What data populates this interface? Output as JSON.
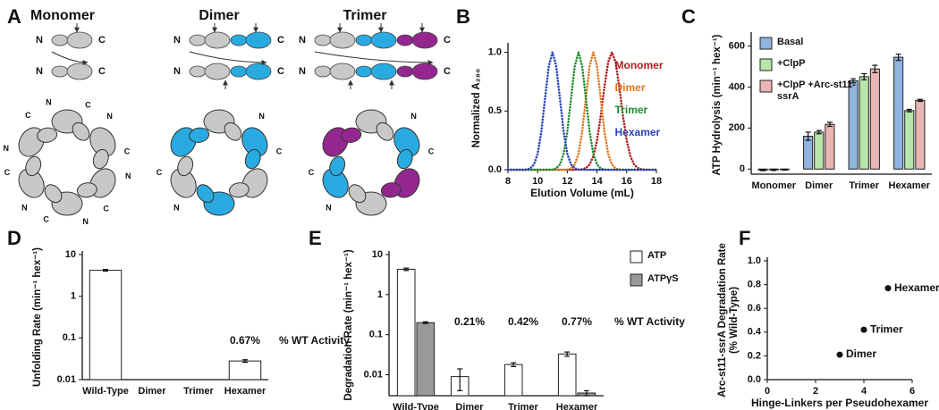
{
  "diagram": {
    "label": "A",
    "titles": [
      "Monomer",
      "Dimer",
      "Trimer"
    ],
    "terminus_labels": [
      "N",
      "C"
    ]
  },
  "chart_data": [
    {
      "type": "line",
      "label": "B",
      "xlabel": "Elution Volume (mL)",
      "ylabel": "Normalized A₂₈₀",
      "legend": "inside",
      "x": [
        8,
        8.25,
        8.5,
        8.75,
        9,
        9.25,
        9.5,
        9.75,
        10,
        10.25,
        10.5,
        10.75,
        11,
        11.25,
        11.5,
        11.75,
        12,
        12.25,
        12.5,
        12.75,
        13,
        13.25,
        13.5,
        13.75,
        14,
        14.25,
        14.5,
        14.75,
        15,
        15.25,
        15.5,
        15.75,
        16,
        16.25,
        16.5,
        16.75,
        17,
        17.25,
        17.5,
        17.75,
        18
      ],
      "xlim": [
        8,
        18
      ],
      "xticks": [
        8,
        10,
        12,
        14,
        16,
        18
      ],
      "ylim": [
        0,
        1.05
      ],
      "yticks": [
        {
          "value": 0,
          "label": "0.0"
        },
        0.5,
        {
          "value": 1,
          "label": "1.0"
        }
      ],
      "series": [
        {
          "name": "Monomer",
          "color": "#b01c1c",
          "values": [
            0,
            0,
            0,
            0,
            0,
            0,
            0,
            0,
            0,
            0,
            0,
            0,
            0,
            0,
            0,
            0,
            0,
            0,
            0,
            0.001,
            0.004,
            0.014,
            0.044,
            0.114,
            0.249,
            0.458,
            0.707,
            0.917,
            1,
            0.917,
            0.707,
            0.458,
            0.249,
            0.114,
            0.044,
            0.014,
            0.004,
            0.001,
            0,
            0,
            0
          ]
        },
        {
          "name": "Dimer",
          "color": "#e0761e",
          "values": [
            0,
            0,
            0,
            0,
            0,
            0,
            0,
            0,
            0,
            0,
            0,
            0,
            0,
            0,
            0,
            0,
            0.002,
            0.011,
            0.044,
            0.135,
            0.325,
            0.607,
            0.882,
            1,
            0.882,
            0.607,
            0.325,
            0.135,
            0.044,
            0.011,
            0.002,
            0,
            0,
            0,
            0,
            0,
            0,
            0,
            0,
            0,
            0
          ]
        },
        {
          "name": "Trimer",
          "color": "#1e8c2e",
          "values": [
            0,
            0,
            0,
            0,
            0,
            0,
            0,
            0,
            0,
            0,
            0,
            0,
            0.002,
            0.011,
            0.044,
            0.135,
            0.325,
            0.607,
            0.882,
            1,
            0.882,
            0.607,
            0.325,
            0.135,
            0.044,
            0.011,
            0.002,
            0,
            0,
            0,
            0,
            0,
            0,
            0,
            0,
            0,
            0,
            0,
            0,
            0,
            0
          ]
        },
        {
          "name": "Hexamer",
          "color": "#2a43b8",
          "values": [
            0,
            0,
            0,
            0,
            0,
            0.002,
            0.011,
            0.044,
            0.135,
            0.325,
            0.607,
            0.882,
            1,
            0.882,
            0.607,
            0.325,
            0.135,
            0.044,
            0.011,
            0.002,
            0,
            0,
            0,
            0,
            0,
            0,
            0,
            0,
            0,
            0,
            0,
            0,
            0,
            0,
            0,
            0,
            0,
            0,
            0,
            0,
            0
          ]
        }
      ]
    },
    {
      "type": "bar",
      "label": "C",
      "ylabel": "ATP Hydrolysis (min⁻¹ hex⁻¹)",
      "legend": "upper left",
      "categories": [
        "Monomer",
        "Dimer",
        "Trimer",
        "Hexamer"
      ],
      "ylim": [
        -25,
        650
      ],
      "yticks": [
        0,
        200,
        400,
        600
      ],
      "series": [
        {
          "name": "Basal",
          "color": "#8fb4e0",
          "values": [
            -5,
            160,
            430,
            545
          ],
          "errors": [
            3,
            20,
            10,
            15
          ]
        },
        {
          "name": "+ClpP",
          "color": "#b8e6a8",
          "values": [
            -4,
            180,
            450,
            285
          ],
          "errors": [
            3,
            8,
            15,
            6
          ]
        },
        {
          "name": "+ClpP +Arc-st11-ssrA",
          "color": "#e8b6b4",
          "values": [
            -3,
            218,
            488,
            335
          ],
          "errors": [
            2,
            10,
            18,
            5
          ]
        }
      ]
    },
    {
      "type": "bar",
      "label": "D",
      "ylabel": "Unfolding Rate (min⁻¹ hex⁻¹)",
      "log_y": true,
      "categories": [
        "Wild-Type",
        "Dimer",
        "Trimer",
        "Hexamer"
      ],
      "ylim": [
        0.01,
        10
      ],
      "yticks": [
        0.01,
        0.1,
        1,
        10
      ],
      "values": [
        4.2,
        null,
        null,
        0.028
      ],
      "errors": [
        0.2,
        null,
        null,
        0.002
      ],
      "color": "#ffffff",
      "wt_activity": {
        "label": "% WT Activity",
        "values": [
          null,
          null,
          null,
          0.67
        ],
        "value_labels": [
          null,
          null,
          null,
          "0.67%"
        ]
      }
    },
    {
      "type": "bar",
      "label": "E",
      "ylabel": "Degradation Rate (min⁻¹ hex⁻¹)",
      "log_y": true,
      "legend": "right",
      "categories": [
        "Wild-Type",
        "Dimer",
        "Trimer",
        "Hexamer"
      ],
      "ylim": [
        0.003,
        10
      ],
      "yticks": [
        0.01,
        0.1,
        1,
        10
      ],
      "series": [
        {
          "name": "ATP",
          "color": "#ffffff",
          "values": [
            4.3,
            0.009,
            0.018,
            0.033
          ],
          "errors": [
            0.3,
            0.005,
            0.002,
            0.004
          ]
        },
        {
          "name": "ATPγS",
          "color": "#999999",
          "values": [
            0.2,
            null,
            null,
            0.0035
          ],
          "errors": [
            0.01,
            null,
            null,
            0.0005
          ]
        }
      ],
      "wt_activity": {
        "label": "% WT Activity",
        "values": [
          null,
          0.21,
          0.42,
          0.77
        ],
        "value_labels": [
          null,
          "0.21%",
          "0.42%",
          "0.77%"
        ]
      }
    },
    {
      "type": "scatter",
      "label": "F",
      "xlabel": "Hinge-Linkers per Pseudohexamer",
      "ylabel": [
        "Arc-st11-ssrA Degradation Rate",
        "(% Wild-Type)"
      ],
      "x": [
        3,
        4,
        5
      ],
      "values": [
        0.21,
        0.42,
        0.77
      ],
      "labels": [
        "Dimer",
        "Trimer",
        "Hexamer"
      ],
      "color": "#111111",
      "xlim": [
        0,
        6
      ],
      "xticks": [
        0,
        2,
        4,
        6
      ],
      "ylim": [
        0,
        1.0
      ],
      "yticks": [
        {
          "value": 0,
          "label": "0.0"
        },
        0.2,
        0.4,
        0.6,
        0.8,
        {
          "value": 1,
          "label": "1.0"
        }
      ]
    }
  ]
}
